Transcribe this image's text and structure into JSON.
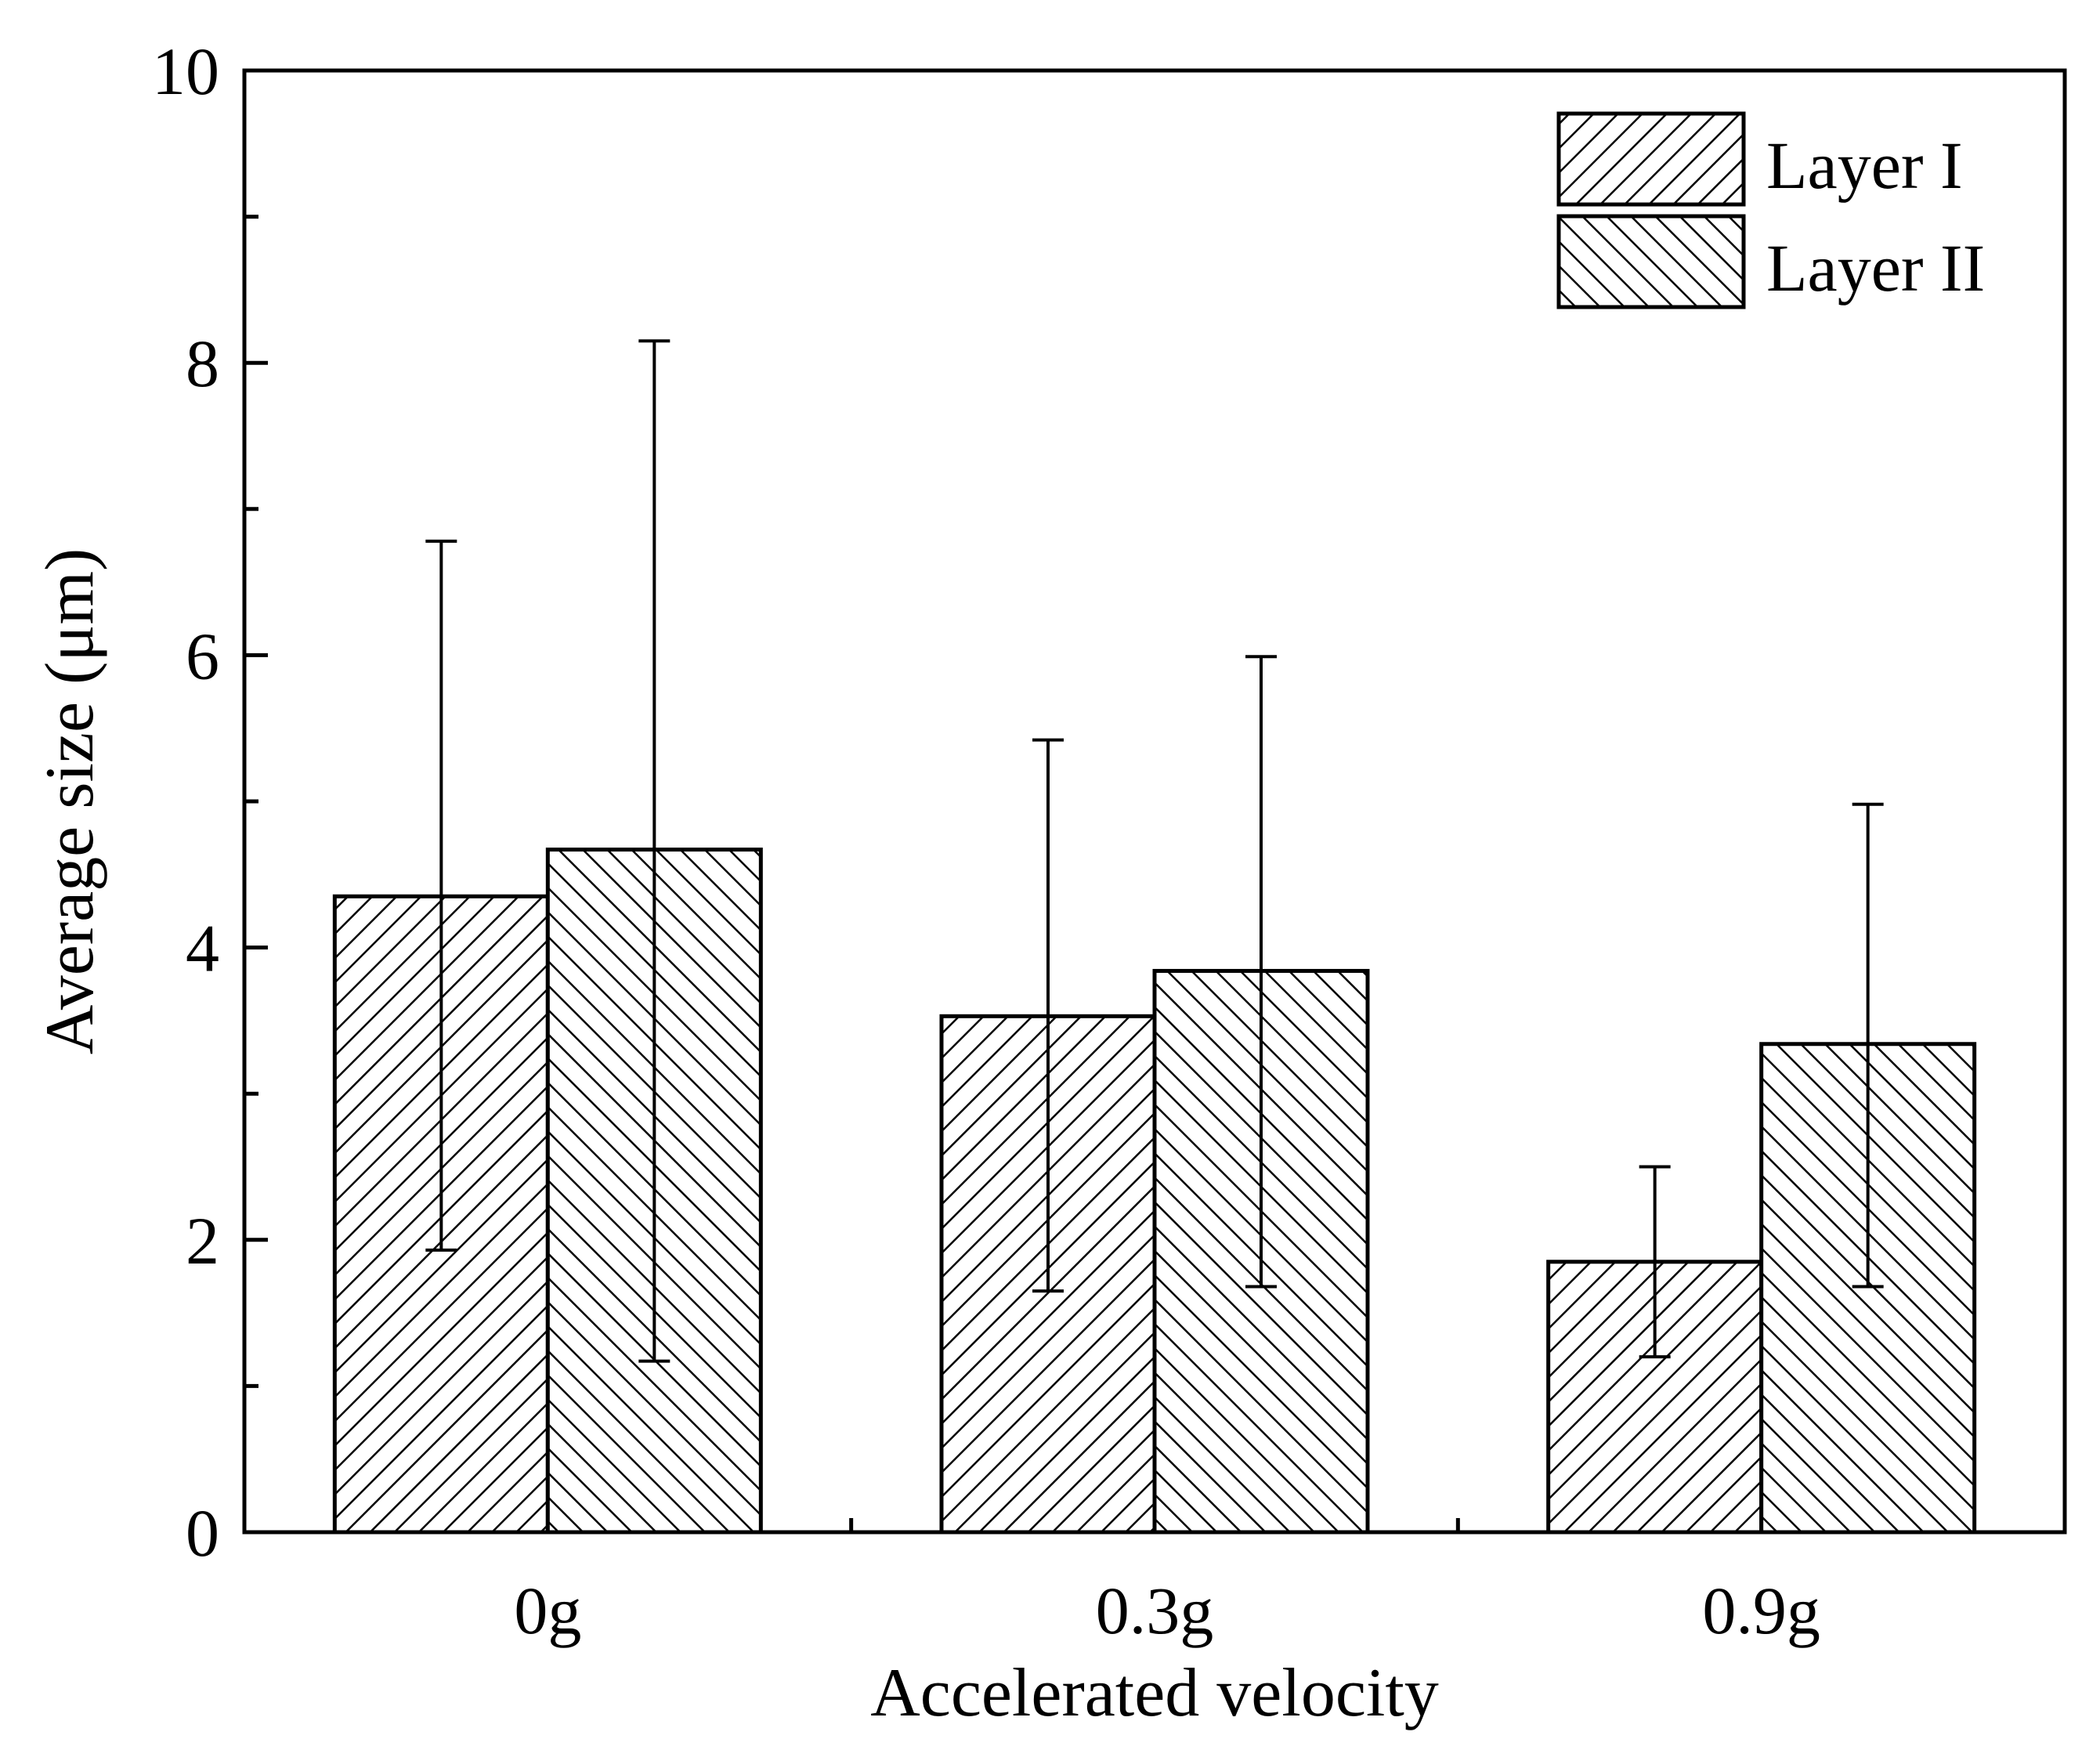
{
  "chart_data": {
    "type": "bar",
    "title": "",
    "xlabel": "Accelerated velocity",
    "ylabel": "Average size (μm)",
    "categories": [
      "0g",
      "0.3g",
      "0.9g"
    ],
    "ylim": [
      0,
      10
    ],
    "yticks": [
      0,
      2,
      4,
      6,
      8,
      10
    ],
    "ytick_labels": [
      "0",
      "2",
      "4",
      "6",
      "8",
      "10"
    ],
    "grid": false,
    "legend_position": "top-right",
    "series": [
      {
        "name": "Layer I",
        "pattern": "hatch-forward",
        "values": [
          4.35,
          3.53,
          1.85
        ],
        "error_low": [
          1.93,
          1.65,
          1.2
        ],
        "error_high": [
          6.78,
          5.42,
          2.5
        ]
      },
      {
        "name": "Layer II",
        "pattern": "hatch-backward",
        "values": [
          4.67,
          3.84,
          3.34
        ],
        "error_low": [
          1.17,
          1.68,
          1.68
        ],
        "error_high": [
          8.15,
          5.99,
          4.98
        ]
      }
    ]
  },
  "colors": {
    "ink": "#000000",
    "fill": "#ffffff"
  }
}
